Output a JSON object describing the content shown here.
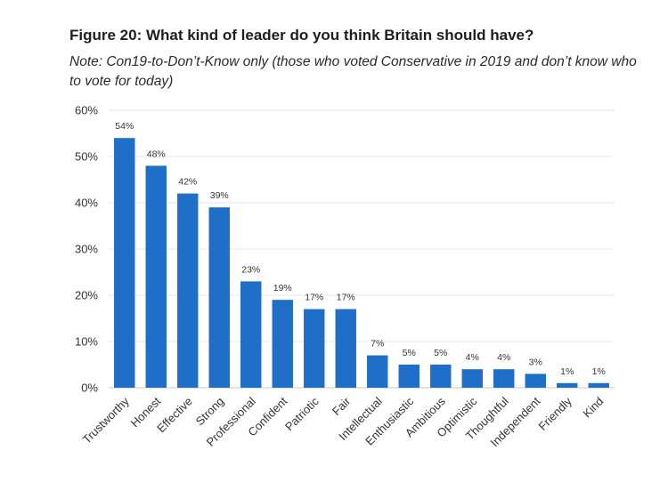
{
  "figure": {
    "title": "Figure 20: What kind of leader do you think Britain should have?",
    "note": "Note:  Con19-to-Don’t-Know only (those who voted Conservative in 2019 and don’t know who to vote for today)"
  },
  "colors": {
    "bar": "#1f6fc8",
    "grid": "#e6e6e6",
    "axis": "#c8c8c8"
  },
  "chart_data": {
    "type": "bar",
    "title": "Figure 20: What kind of leader do you think Britain should have?",
    "xlabel": "",
    "ylabel": "",
    "ylim": [
      0,
      60
    ],
    "yticks": [
      0,
      10,
      20,
      30,
      40,
      50,
      60
    ],
    "ytick_labels": [
      "0%",
      "10%",
      "20%",
      "30%",
      "40%",
      "50%",
      "60%"
    ],
    "grid": true,
    "categories": [
      "Trustworthy",
      "Honest",
      "Effective",
      "Strong",
      "Professional",
      "Confident",
      "Patriotic",
      "Fair",
      "Intellectual",
      "Enthusiastic",
      "Ambitious",
      "Optimistic",
      "Thoughtful",
      "Independent",
      "Friendly",
      "Kind"
    ],
    "values": [
      54,
      48,
      42,
      39,
      23,
      19,
      17,
      17,
      7,
      5,
      5,
      4,
      4,
      3,
      1,
      1
    ],
    "data_labels": [
      "54%",
      "48%",
      "42%",
      "39%",
      "23%",
      "19%",
      "17%",
      "17%",
      "7%",
      "5%",
      "5%",
      "4%",
      "4%",
      "3%",
      "1%",
      "1%"
    ]
  }
}
